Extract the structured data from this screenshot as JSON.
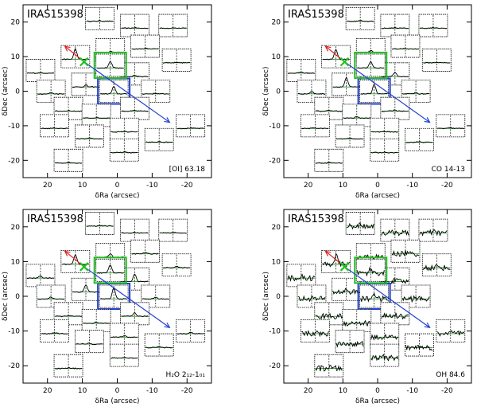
{
  "chart_data": [
    {
      "type": "scatter",
      "title": "IRAS15398",
      "line_label": "[OI] 63.18",
      "noise": 0.08,
      "xlabel": "δRa (arcsec)",
      "ylabel": "δDec (arcsec)",
      "xlim": [
        27,
        -27
      ],
      "ylim": [
        -25,
        25
      ],
      "xticks": [
        20,
        10,
        0,
        -10,
        -20
      ],
      "yticks": [
        -20,
        -10,
        0,
        10,
        20
      ],
      "outflow_axis": {
        "red_end": [
          15,
          13
        ],
        "source": [
          9.5,
          8.5
        ],
        "blue_end": [
          -15,
          -9
        ]
      },
      "source_position": [
        9.5,
        8.5
      ],
      "highlights": [
        {
          "color": "#e02020",
          "position": [
            12,
            11
          ]
        },
        {
          "color": "#20c020",
          "position": [
            2,
            7.5
          ]
        },
        {
          "color": "#2040d0",
          "position": [
            1,
            0
          ]
        }
      ],
      "spaxels": [
        {
          "position": [
            5,
            21
          ],
          "peak": 0.05
        },
        {
          "position": [
            -5,
            19
          ],
          "peak": 0.05
        },
        {
          "position": [
            -16,
            19
          ],
          "peak": 0.05
        },
        {
          "position": [
            2,
            12
          ],
          "peak": 0.1
        },
        {
          "position": [
            -8,
            13
          ],
          "peak": 0.05
        },
        {
          "position": [
            22,
            6
          ],
          "peak": 0.05
        },
        {
          "position": [
            12,
            10
          ],
          "peak": 0.85
        },
        {
          "position": [
            -5,
            5
          ],
          "peak": 0.1
        },
        {
          "position": [
            -17,
            9
          ],
          "peak": 0.05
        },
        {
          "position": [
            19,
            0
          ],
          "peak": 0.1
        },
        {
          "position": [
            9,
            2
          ],
          "peak": 0.15
        },
        {
          "position": [
            1,
            0
          ],
          "peak": 0.6
        },
        {
          "position": [
            -11,
            0
          ],
          "peak": 0.05
        },
        {
          "position": [
            14,
            -5
          ],
          "peak": 0.05
        },
        {
          "position": [
            -5,
            -5
          ],
          "peak": 0.05
        },
        {
          "position": [
            6,
            -7
          ],
          "peak": 0.05
        },
        {
          "position": [
            -21,
            -10
          ],
          "peak": 0.05
        },
        {
          "position": [
            18,
            -10
          ],
          "peak": 0.05
        },
        {
          "position": [
            -2,
            -11
          ],
          "peak": 0.05
        },
        {
          "position": [
            -12,
            -14
          ],
          "peak": 0.05
        },
        {
          "position": [
            8,
            -13
          ],
          "peak": 0.05
        },
        {
          "position": [
            -2,
            -17
          ],
          "peak": 0.05
        },
        {
          "position": [
            14,
            -20
          ],
          "peak": 0.05
        },
        {
          "position": [
            2,
            7.5
          ],
          "peak": 0.55
        }
      ]
    },
    {
      "type": "scatter",
      "title": "IRAS15398",
      "line_label": "CO 14-13",
      "noise": 0.08,
      "xlabel": "δRa (arcsec)",
      "ylabel": "δDec (arcsec)",
      "xlim": [
        27,
        -27
      ],
      "ylim": [
        -25,
        25
      ],
      "xticks": [
        20,
        10,
        0,
        -10,
        -20
      ],
      "yticks": [
        -20,
        -10,
        0,
        10,
        20
      ],
      "outflow_axis": {
        "red_end": [
          15,
          13
        ],
        "source": [
          9.5,
          8.5
        ],
        "blue_end": [
          -15,
          -9
        ]
      },
      "source_position": [
        9.5,
        8.5
      ],
      "highlights": [
        {
          "color": "#e02020",
          "position": [
            12,
            11
          ]
        },
        {
          "color": "#20c020",
          "position": [
            2,
            7.5
          ]
        },
        {
          "color": "#2040d0",
          "position": [
            1,
            0
          ]
        }
      ],
      "spaxels": [
        {
          "position": [
            5,
            21
          ],
          "peak": 0.05
        },
        {
          "position": [
            -5,
            19
          ],
          "peak": 0.05
        },
        {
          "position": [
            -16,
            19
          ],
          "peak": 0.05
        },
        {
          "position": [
            2,
            12
          ],
          "peak": 0.15
        },
        {
          "position": [
            -8,
            13
          ],
          "peak": 0.05
        },
        {
          "position": [
            22,
            6
          ],
          "peak": 0.1
        },
        {
          "position": [
            12,
            10
          ],
          "peak": 0.8
        },
        {
          "position": [
            -5,
            5
          ],
          "peak": 0.35
        },
        {
          "position": [
            -17,
            9
          ],
          "peak": 0.05
        },
        {
          "position": [
            19,
            0
          ],
          "peak": 0.2
        },
        {
          "position": [
            9,
            2
          ],
          "peak": 0.75
        },
        {
          "position": [
            1,
            0
          ],
          "peak": 0.8
        },
        {
          "position": [
            -11,
            0
          ],
          "peak": 0.1
        },
        {
          "position": [
            14,
            -5
          ],
          "peak": 0.1
        },
        {
          "position": [
            -5,
            -5
          ],
          "peak": 0.1
        },
        {
          "position": [
            6,
            -7
          ],
          "peak": 0.1
        },
        {
          "position": [
            -21,
            -10
          ],
          "peak": 0.05
        },
        {
          "position": [
            18,
            -10
          ],
          "peak": 0.05
        },
        {
          "position": [
            -2,
            -11
          ],
          "peak": 0.05
        },
        {
          "position": [
            -12,
            -14
          ],
          "peak": 0.05
        },
        {
          "position": [
            8,
            -13
          ],
          "peak": 0.05
        },
        {
          "position": [
            -2,
            -17
          ],
          "peak": 0.05
        },
        {
          "position": [
            14,
            -20
          ],
          "peak": 0.05
        },
        {
          "position": [
            2,
            7.5
          ],
          "peak": 0.5
        }
      ]
    },
    {
      "type": "scatter",
      "title": "IRAS15398",
      "line_label": "H₂O 2₁₂-1₀₁",
      "noise": 0.08,
      "xlabel": "δRa (arcsec)",
      "ylabel": "δDec (arcsec)",
      "xlim": [
        27,
        -27
      ],
      "ylim": [
        -25,
        25
      ],
      "xticks": [
        20,
        10,
        0,
        -10,
        -20
      ],
      "yticks": [
        -20,
        -10,
        0,
        10,
        20
      ],
      "outflow_axis": {
        "red_end": [
          15,
          13
        ],
        "source": [
          9.5,
          8.5
        ],
        "blue_end": [
          -15,
          -9
        ]
      },
      "source_position": [
        9.5,
        8.5
      ],
      "highlights": [
        {
          "color": "#e02020",
          "position": [
            12,
            11
          ]
        },
        {
          "color": "#20c020",
          "position": [
            2,
            7.5
          ]
        },
        {
          "color": "#2040d0",
          "position": [
            1,
            0
          ]
        }
      ],
      "spaxels": [
        {
          "position": [
            5,
            21
          ],
          "peak": 0.05
        },
        {
          "position": [
            -5,
            19
          ],
          "peak": 0.05
        },
        {
          "position": [
            -16,
            19
          ],
          "peak": 0.05
        },
        {
          "position": [
            2,
            12
          ],
          "peak": 0.3
        },
        {
          "position": [
            -8,
            13
          ],
          "peak": 0.1
        },
        {
          "position": [
            22,
            6
          ],
          "peak": 0.2
        },
        {
          "position": [
            12,
            10
          ],
          "peak": 0.8
        },
        {
          "position": [
            -5,
            5
          ],
          "peak": 0.6
        },
        {
          "position": [
            -17,
            9
          ],
          "peak": 0.1
        },
        {
          "position": [
            19,
            0
          ],
          "peak": 0.15
        },
        {
          "position": [
            9,
            2
          ],
          "peak": 0.6
        },
        {
          "position": [
            1,
            0
          ],
          "peak": 0.9
        },
        {
          "position": [
            -11,
            0
          ],
          "peak": 0.15
        },
        {
          "position": [
            14,
            -5
          ],
          "peak": 0.1
        },
        {
          "position": [
            -5,
            -5
          ],
          "peak": 0.3
        },
        {
          "position": [
            6,
            -7
          ],
          "peak": 0.1
        },
        {
          "position": [
            -21,
            -10
          ],
          "peak": 0.1
        },
        {
          "position": [
            18,
            -10
          ],
          "peak": 0.1
        },
        {
          "position": [
            -2,
            -11
          ],
          "peak": 0.15
        },
        {
          "position": [
            -12,
            -14
          ],
          "peak": 0.1
        },
        {
          "position": [
            8,
            -13
          ],
          "peak": 0.1
        },
        {
          "position": [
            -2,
            -17
          ],
          "peak": 0.05
        },
        {
          "position": [
            14,
            -20
          ],
          "peak": 0.05
        },
        {
          "position": [
            2,
            7.5
          ],
          "peak": 0.65
        }
      ]
    },
    {
      "type": "scatter",
      "title": "IRAS15398",
      "line_label": "OH 84.6",
      "noise": 0.45,
      "xlabel": "δRa (arcsec)",
      "ylabel": "δDec (arcsec)",
      "xlim": [
        27,
        -27
      ],
      "ylim": [
        -25,
        25
      ],
      "xticks": [
        20,
        10,
        0,
        -10,
        -20
      ],
      "yticks": [
        -20,
        -10,
        0,
        10,
        20
      ],
      "outflow_axis": {
        "red_end": [
          15,
          13
        ],
        "source": [
          9.5,
          8.5
        ],
        "blue_end": [
          -15,
          -9
        ]
      },
      "source_position": [
        9.5,
        8.5
      ],
      "highlights": [
        {
          "color": "#e02020",
          "position": [
            12,
            11
          ]
        },
        {
          "color": "#20c020",
          "position": [
            2,
            7.5
          ]
        },
        {
          "color": "#2040d0",
          "position": [
            1,
            0
          ]
        }
      ],
      "spaxels": [
        {
          "position": [
            5,
            21
          ],
          "peak": 0.1
        },
        {
          "position": [
            -5,
            19
          ],
          "peak": 0.1
        },
        {
          "position": [
            -16,
            19
          ],
          "peak": 0.1
        },
        {
          "position": [
            2,
            12
          ],
          "peak": 0.1
        },
        {
          "position": [
            -8,
            13
          ],
          "peak": 0.1
        },
        {
          "position": [
            22,
            6
          ],
          "peak": 0.1
        },
        {
          "position": [
            12,
            10
          ],
          "peak": 0.7
        },
        {
          "position": [
            -5,
            5
          ],
          "peak": 0.1
        },
        {
          "position": [
            -17,
            9
          ],
          "peak": 0.1
        },
        {
          "position": [
            19,
            0
          ],
          "peak": 0.1
        },
        {
          "position": [
            9,
            2
          ],
          "peak": 0.2
        },
        {
          "position": [
            1,
            0
          ],
          "peak": 0.5
        },
        {
          "position": [
            -11,
            0
          ],
          "peak": 0.1
        },
        {
          "position": [
            14,
            -5
          ],
          "peak": 0.1
        },
        {
          "position": [
            -5,
            -5
          ],
          "peak": 0.1
        },
        {
          "position": [
            6,
            -7
          ],
          "peak": 0.1
        },
        {
          "position": [
            -21,
            -10
          ],
          "peak": 0.1
        },
        {
          "position": [
            18,
            -10
          ],
          "peak": 0.1
        },
        {
          "position": [
            -2,
            -11
          ],
          "peak": 0.1
        },
        {
          "position": [
            -12,
            -14
          ],
          "peak": 0.1
        },
        {
          "position": [
            8,
            -13
          ],
          "peak": 0.1
        },
        {
          "position": [
            -2,
            -17
          ],
          "peak": 0.1
        },
        {
          "position": [
            14,
            -20
          ],
          "peak": 0.1
        },
        {
          "position": [
            2,
            7.5
          ],
          "peak": 0.3
        }
      ]
    }
  ]
}
